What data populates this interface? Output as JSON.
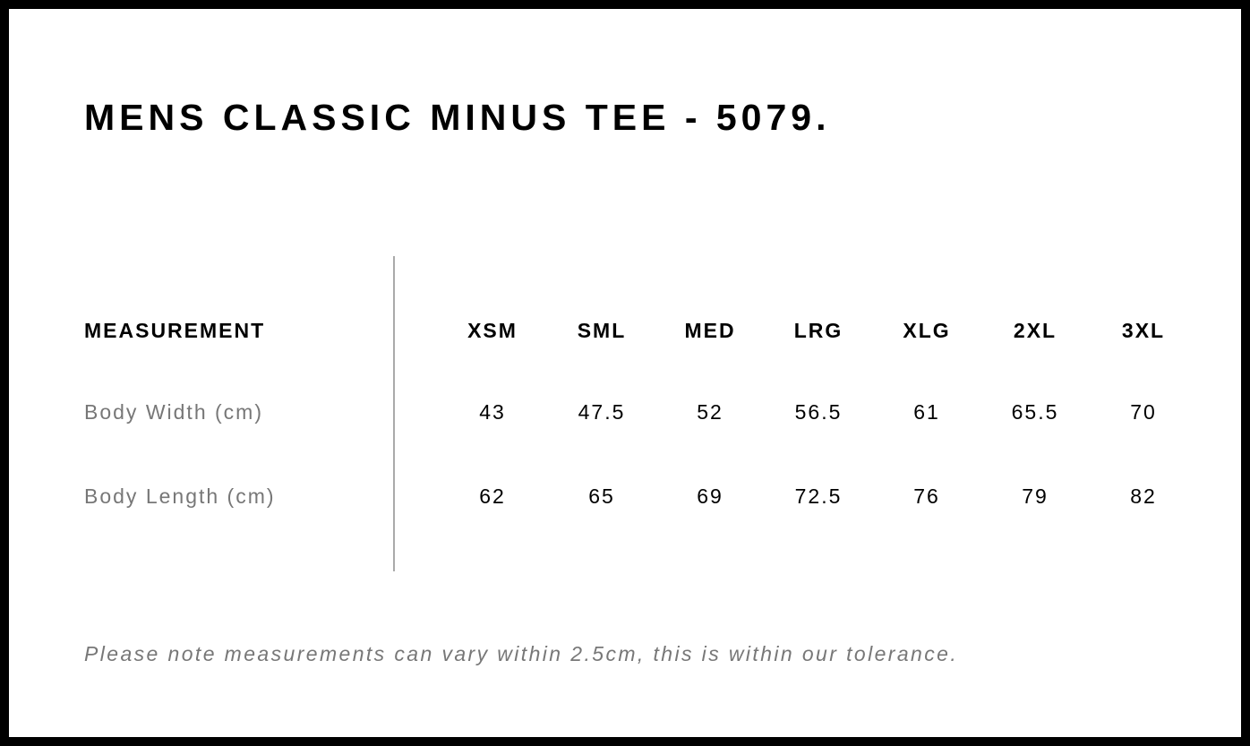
{
  "title": "MENS CLASSIC MINUS TEE - 5079.",
  "table": {
    "header_label": "MEASUREMENT",
    "sizes": [
      "XSM",
      "SML",
      "MED",
      "LRG",
      "XLG",
      "2XL",
      "3XL"
    ],
    "rows": [
      {
        "label": "Body Width (cm)",
        "values": [
          "43",
          "47.5",
          "52",
          "56.5",
          "61",
          "65.5",
          "70"
        ]
      },
      {
        "label": "Body Length (cm)",
        "values": [
          "62",
          "65",
          "69",
          "72.5",
          "76",
          "79",
          "82"
        ]
      }
    ]
  },
  "note": "Please note measurements can vary within 2.5cm, this is within our tolerance."
}
